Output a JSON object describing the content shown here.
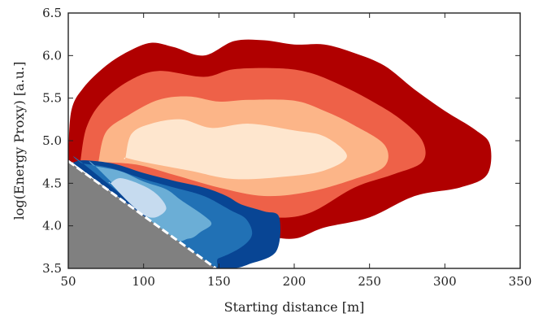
{
  "chart_data": {
    "type": "area",
    "subtype": "2d-density-contour",
    "title": "",
    "xlabel": "Starting distance [m]",
    "ylabel": "log(Energy Proxy) [a.u.]",
    "xlim": [
      50,
      350
    ],
    "ylim": [
      3.5,
      6.5
    ],
    "xticks": [
      50,
      100,
      150,
      200,
      250,
      300,
      350
    ],
    "yticks": [
      3.5,
      4.0,
      4.5,
      5.0,
      5.5,
      6.0,
      6.5
    ],
    "xtick_labels": [
      "50",
      "100",
      "150",
      "200",
      "250",
      "300",
      "350"
    ],
    "ytick_labels": [
      "3.5",
      "4.0",
      "4.5",
      "5.0",
      "5.5",
      "6.0",
      "6.5"
    ],
    "grid": false,
    "legend": "none",
    "excluded_region": {
      "color": "#808080",
      "boundary": [
        [
          50,
          4.76
        ],
        [
          148,
          3.5
        ]
      ]
    },
    "series": [
      {
        "colormap": "reds",
        "levels": [
          {
            "color": "#b00000",
            "contour": [
              [
                50,
                4.8
              ],
              [
                52,
                5.35
              ],
              [
                60,
                5.62
              ],
              [
                75,
                5.88
              ],
              [
                90,
                6.05
              ],
              [
                105,
                6.15
              ],
              [
                120,
                6.1
              ],
              [
                140,
                6.0
              ],
              [
                160,
                6.17
              ],
              [
                180,
                6.18
              ],
              [
                200,
                6.13
              ],
              [
                220,
                6.13
              ],
              [
                240,
                6.03
              ],
              [
                260,
                5.88
              ],
              [
                280,
                5.6
              ],
              [
                300,
                5.35
              ],
              [
                320,
                5.13
              ],
              [
                330,
                4.95
              ],
              [
                328,
                4.6
              ],
              [
                310,
                4.45
              ],
              [
                280,
                4.35
              ],
              [
                250,
                4.1
              ],
              [
                220,
                3.98
              ],
              [
                200,
                3.85
              ],
              [
                180,
                3.9
              ],
              [
                160,
                4.05
              ],
              [
                130,
                4.45
              ],
              [
                110,
                4.6
              ],
              [
                80,
                4.72
              ],
              [
                60,
                4.73
              ],
              [
                50,
                4.76
              ]
            ]
          },
          {
            "color": "#ee6148",
            "contour": [
              [
                58,
                4.75
              ],
              [
                62,
                5.15
              ],
              [
                72,
                5.45
              ],
              [
                90,
                5.7
              ],
              [
                110,
                5.82
              ],
              [
                140,
                5.75
              ],
              [
                160,
                5.84
              ],
              [
                190,
                5.85
              ],
              [
                210,
                5.8
              ],
              [
                230,
                5.66
              ],
              [
                250,
                5.48
              ],
              [
                270,
                5.26
              ],
              [
                285,
                5.0
              ],
              [
                285,
                4.75
              ],
              [
                265,
                4.6
              ],
              [
                240,
                4.45
              ],
              [
                210,
                4.15
              ],
              [
                185,
                4.1
              ],
              [
                160,
                4.2
              ],
              [
                130,
                4.4
              ],
              [
                100,
                4.6
              ],
              [
                75,
                4.7
              ],
              [
                58,
                4.75
              ]
            ]
          },
          {
            "color": "#fcb588",
            "contour": [
              [
                70,
                4.75
              ],
              [
                75,
                5.1
              ],
              [
                90,
                5.3
              ],
              [
                110,
                5.48
              ],
              [
                130,
                5.52
              ],
              [
                150,
                5.46
              ],
              [
                170,
                5.48
              ],
              [
                200,
                5.47
              ],
              [
                220,
                5.35
              ],
              [
                240,
                5.18
              ],
              [
                260,
                4.95
              ],
              [
                260,
                4.7
              ],
              [
                240,
                4.55
              ],
              [
                210,
                4.4
              ],
              [
                180,
                4.35
              ],
              [
                150,
                4.45
              ],
              [
                120,
                4.6
              ],
              [
                95,
                4.72
              ],
              [
                70,
                4.75
              ]
            ]
          },
          {
            "color": "#fee6ce",
            "contour": [
              [
                88,
                4.8
              ],
              [
                92,
                5.08
              ],
              [
                105,
                5.2
              ],
              [
                125,
                5.25
              ],
              [
                145,
                5.15
              ],
              [
                170,
                5.2
              ],
              [
                200,
                5.12
              ],
              [
                220,
                5.05
              ],
              [
                235,
                4.82
              ],
              [
                220,
                4.65
              ],
              [
                195,
                4.58
              ],
              [
                160,
                4.55
              ],
              [
                130,
                4.65
              ],
              [
                100,
                4.75
              ],
              [
                88,
                4.8
              ]
            ]
          }
        ]
      },
      {
        "colormap": "blues",
        "levels": [
          {
            "color": "#084594",
            "contour": [
              [
                53,
                4.74
              ],
              [
                60,
                4.77
              ],
              [
                80,
                4.73
              ],
              [
                100,
                4.62
              ],
              [
                120,
                4.53
              ],
              [
                140,
                4.45
              ],
              [
                155,
                4.35
              ],
              [
                165,
                4.25
              ],
              [
                180,
                4.17
              ],
              [
                190,
                4.1
              ],
              [
                188,
                3.7
              ],
              [
                170,
                3.55
              ],
              [
                160,
                3.5
              ],
              [
                148,
                3.5
              ],
              [
                53,
                4.74
              ]
            ]
          },
          {
            "color": "#2171b5",
            "contour": [
              [
                60,
                4.73
              ],
              [
                78,
                4.68
              ],
              [
                100,
                4.55
              ],
              [
                118,
                4.46
              ],
              [
                140,
                4.35
              ],
              [
                158,
                4.18
              ],
              [
                168,
                4.08
              ],
              [
                172,
                3.9
              ],
              [
                165,
                3.75
              ],
              [
                150,
                3.62
              ],
              [
                140,
                3.6
              ],
              [
                60,
                4.73
              ]
            ]
          },
          {
            "color": "#6baed6",
            "contour": [
              [
                68,
                4.7
              ],
              [
                85,
                4.64
              ],
              [
                100,
                4.52
              ],
              [
                115,
                4.43
              ],
              [
                125,
                4.3
              ],
              [
                140,
                4.12
              ],
              [
                145,
                4.02
              ],
              [
                138,
                3.93
              ],
              [
                130,
                3.85
              ],
              [
                115,
                3.9
              ],
              [
                68,
                4.7
              ]
            ]
          },
          {
            "color": "#c6dbef",
            "contour": [
              [
                78,
                4.5
              ],
              [
                85,
                4.56
              ],
              [
                100,
                4.47
              ],
              [
                110,
                4.35
              ],
              [
                115,
                4.2
              ],
              [
                108,
                4.1
              ],
              [
                100,
                4.13
              ],
              [
                90,
                4.28
              ],
              [
                78,
                4.5
              ]
            ]
          }
        ]
      }
    ]
  }
}
